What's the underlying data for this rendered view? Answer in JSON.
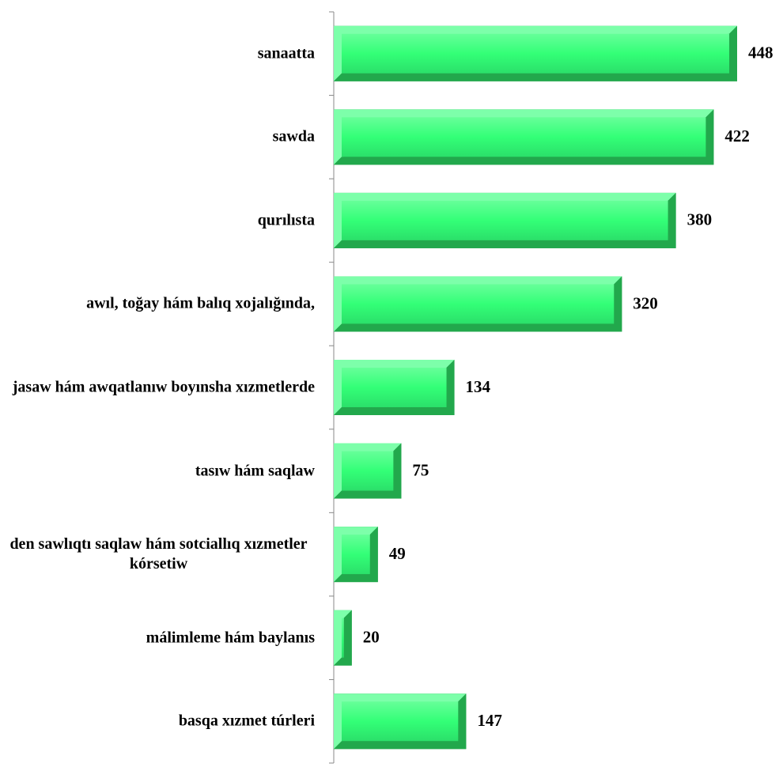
{
  "chart_data": {
    "type": "bar",
    "orientation": "horizontal",
    "categories": [
      "sanaatta",
      "sawda",
      "qurılısta",
      "awıl, toğay hám balıq xojalığında,",
      "jasaw hám awqatlanıw boyınsha xızmetlerde",
      "tasıw hám saqlaw",
      "den sawlıqtı saqlaw hám sotciallıq xızmetler kórsetiw",
      "málimleme hám baylanıs",
      "basqa xızmet túrleri"
    ],
    "values": [
      448,
      422,
      380,
      320,
      134,
      75,
      49,
      20,
      147
    ],
    "color": "#33ff77"
  }
}
